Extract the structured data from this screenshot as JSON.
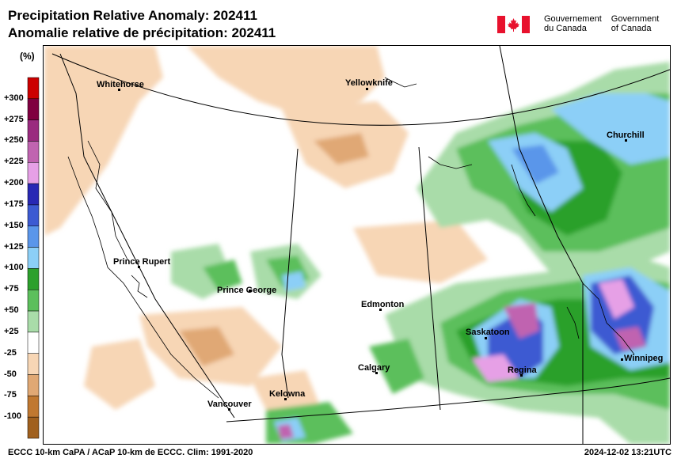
{
  "title": {
    "line1": "Precipitation Relative Anomaly: 202411",
    "line2": "Anomalie relative de précipitation: 202411"
  },
  "government": {
    "fr": [
      "Gouvernement",
      "du Canada"
    ],
    "en": [
      "Government",
      "of Canada"
    ],
    "flag_colors": {
      "red": "#e8112d",
      "white": "#ffffff"
    }
  },
  "legend": {
    "unit": "(%)",
    "bins": [
      {
        "label": "+300",
        "color": "#cc0000"
      },
      {
        "label": "+275",
        "color": "#800040"
      },
      {
        "label": "+250",
        "color": "#9a2b7f"
      },
      {
        "label": "+225",
        "color": "#c064b0"
      },
      {
        "label": "+200",
        "color": "#e6a0e6"
      },
      {
        "label": "+175",
        "color": "#2828b4"
      },
      {
        "label": "+150",
        "color": "#3c5ad2"
      },
      {
        "label": "+125",
        "color": "#5a96ea"
      },
      {
        "label": "+100",
        "color": "#8ccff7"
      },
      {
        "label": "+75",
        "color": "#2ca02c"
      },
      {
        "label": "+50",
        "color": "#5cbf5c"
      },
      {
        "label": "+25",
        "color": "#a9dca9"
      },
      {
        "label": "-25",
        "color": "#ffffff"
      },
      {
        "label": "-50",
        "color": "#f7d6b5"
      },
      {
        "label": "-75",
        "color": "#e0a874"
      },
      {
        "label": "-100",
        "color": "#c07830"
      },
      {
        "label": "",
        "color": "#a0601e"
      }
    ]
  },
  "map": {
    "cities": [
      {
        "name": "Whitehorse"
      },
      {
        "name": "Yellowknife"
      },
      {
        "name": "Churchill"
      },
      {
        "name": "Prince Rupert"
      },
      {
        "name": "Prince George"
      },
      {
        "name": "Edmonton"
      },
      {
        "name": "Saskatoon"
      },
      {
        "name": "Regina"
      },
      {
        "name": "Winnipeg"
      },
      {
        "name": "Calgary"
      },
      {
        "name": "Kelowna"
      },
      {
        "name": "Vancouver"
      }
    ]
  },
  "footer": {
    "left": "ECCC 10-km CaPA / ACaP 10-km de ECCC. Clim: 1991-2020",
    "right": "2024-12-02 13:21UTC"
  }
}
